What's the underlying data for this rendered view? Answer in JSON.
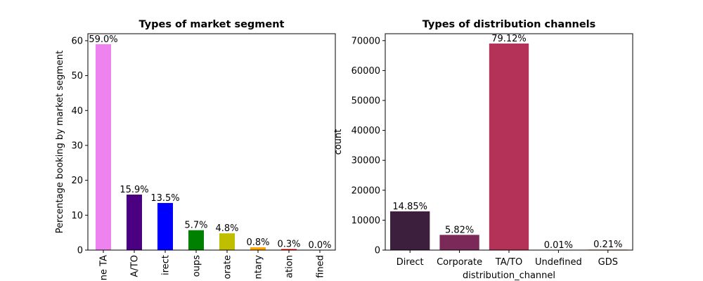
{
  "chart_data": [
    {
      "type": "bar",
      "title": "Types of market segment",
      "xlabel": "",
      "ylabel": "Percentage booking by market segment",
      "ylim": [
        0,
        62
      ],
      "yticks": [
        0,
        10,
        20,
        30,
        40,
        50,
        60
      ],
      "categories": [
        "Online TA",
        "Offline TA/TO",
        "Direct",
        "Groups",
        "Corporate",
        "Complementary",
        "Aviation",
        "Undefined"
      ],
      "tick_labels": [
        "ne TA",
        "A/TO",
        "irect",
        "oups",
        "orate",
        "ntary",
        "ation",
        "fined"
      ],
      "values": [
        59.0,
        15.9,
        13.5,
        5.7,
        4.8,
        0.8,
        0.3,
        0.0
      ],
      "data_labels": [
        "59.0%",
        "15.9%",
        "13.5%",
        "5.7%",
        "4.8%",
        "0.8%",
        "0.3%",
        "0.0%"
      ],
      "colors": [
        "#ee82ee",
        "#4b0082",
        "#0000ff",
        "#008000",
        "#bfbf00",
        "#ffa500",
        "#ff0000",
        "#ee82ee"
      ],
      "grid": false,
      "legend": "none"
    },
    {
      "type": "bar",
      "title": "Types of distribution channels",
      "xlabel": "distribution_channel",
      "ylabel": "count",
      "ylim": [
        0,
        72300
      ],
      "yticks": [
        0,
        10000,
        20000,
        30000,
        40000,
        50000,
        60000,
        70000
      ],
      "categories": [
        "Direct",
        "Corporate",
        "TA/TO",
        "Undefined",
        "GDS"
      ],
      "tick_labels": [
        "Direct",
        "Corporate",
        "TA/TO",
        "Undefined",
        "GDS"
      ],
      "values": [
        12954,
        5081,
        69028,
        5,
        181
      ],
      "data_labels": [
        "14.85%",
        "5.82%",
        "79.12%",
        "0.01%",
        "0.21%"
      ],
      "colors": [
        "#3b1f3c",
        "#7a2958",
        "#b43157",
        "#dd4a42",
        "#ed7a47"
      ],
      "grid": false,
      "legend": "none"
    }
  ]
}
